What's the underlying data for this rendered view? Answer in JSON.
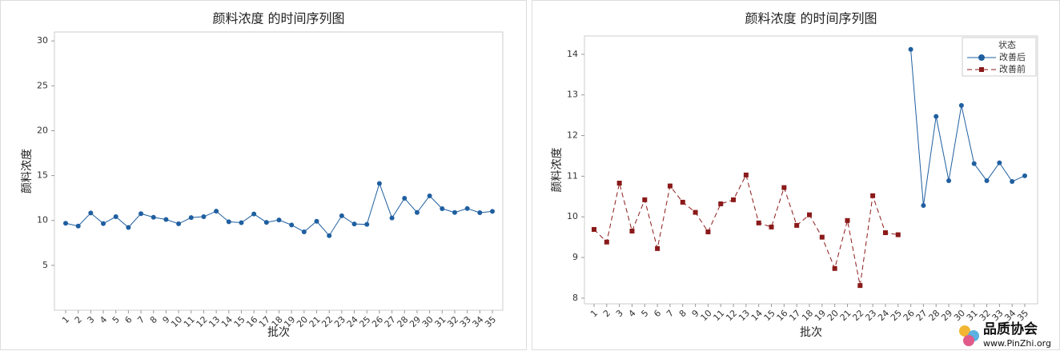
{
  "chart_data": [
    {
      "type": "line",
      "title": "颜料浓度 的时间序列图",
      "x_label": "批次",
      "y_label": "颜料浓度",
      "categories": [
        "1",
        "2",
        "3",
        "4",
        "5",
        "6",
        "7",
        "8",
        "9",
        "10",
        "11",
        "12",
        "13",
        "14",
        "15",
        "16",
        "17",
        "18",
        "19",
        "20",
        "21",
        "22",
        "23",
        "24",
        "25",
        "26",
        "27",
        "28",
        "29",
        "30",
        "31",
        "32",
        "33",
        "34",
        "35"
      ],
      "series": [
        {
          "name": null,
          "color": "#1f5fa0",
          "marker": "circle",
          "dashed": false,
          "values": [
            9.69,
            9.38,
            10.83,
            9.65,
            10.42,
            9.22,
            10.76,
            10.36,
            10.11,
            9.63,
            10.32,
            10.42,
            11.03,
            9.85,
            9.75,
            10.72,
            9.79,
            10.05,
            9.5,
            8.73,
            9.91,
            8.31,
            10.52,
            9.61,
            9.56,
            14.12,
            10.28,
            12.47,
            10.89,
            12.74,
            11.31,
            10.89,
            11.33,
            10.87,
            11.01
          ]
        }
      ],
      "ylim": [
        0,
        31
      ],
      "yticks": [
        5,
        10,
        15,
        20,
        25,
        30
      ],
      "grid": false,
      "legend": false
    },
    {
      "type": "line",
      "title": "颜料浓度 的时间序列图",
      "x_label": "批次",
      "y_label": "颜料浓度",
      "categories": [
        "1",
        "2",
        "3",
        "4",
        "5",
        "6",
        "7",
        "8",
        "9",
        "10",
        "11",
        "12",
        "13",
        "14",
        "15",
        "16",
        "17",
        "18",
        "19",
        "20",
        "21",
        "22",
        "23",
        "24",
        "25",
        "26",
        "27",
        "28",
        "29",
        "30",
        "31",
        "32",
        "33",
        "34",
        "35"
      ],
      "legend_title": "状态",
      "legend": "upper right",
      "series": [
        {
          "name": "改善后",
          "color": "#1f5fa0",
          "marker": "circle",
          "dashed": false,
          "values": [
            null,
            null,
            null,
            null,
            null,
            null,
            null,
            null,
            null,
            null,
            null,
            null,
            null,
            null,
            null,
            null,
            null,
            null,
            null,
            null,
            null,
            null,
            null,
            null,
            null,
            14.12,
            10.28,
            12.47,
            10.89,
            12.74,
            11.31,
            10.89,
            11.33,
            10.87,
            11.01
          ]
        },
        {
          "name": "改善前",
          "color": "#8b1a1a",
          "marker": "square",
          "dashed": true,
          "values": [
            9.69,
            9.38,
            10.83,
            9.65,
            10.42,
            9.22,
            10.76,
            10.36,
            10.11,
            9.63,
            10.32,
            10.42,
            11.03,
            9.85,
            9.75,
            10.72,
            9.79,
            10.05,
            9.5,
            8.73,
            9.91,
            8.31,
            10.52,
            9.61,
            9.56,
            null,
            null,
            null,
            null,
            null,
            null,
            null,
            null,
            null,
            null
          ]
        }
      ],
      "ylim": [
        7.86,
        14.45
      ],
      "yticks": [
        8,
        9,
        10,
        11,
        12,
        13,
        14
      ],
      "grid": false
    }
  ],
  "watermark": {
    "title": "品质协会",
    "url": "www.PinZhi.org"
  }
}
